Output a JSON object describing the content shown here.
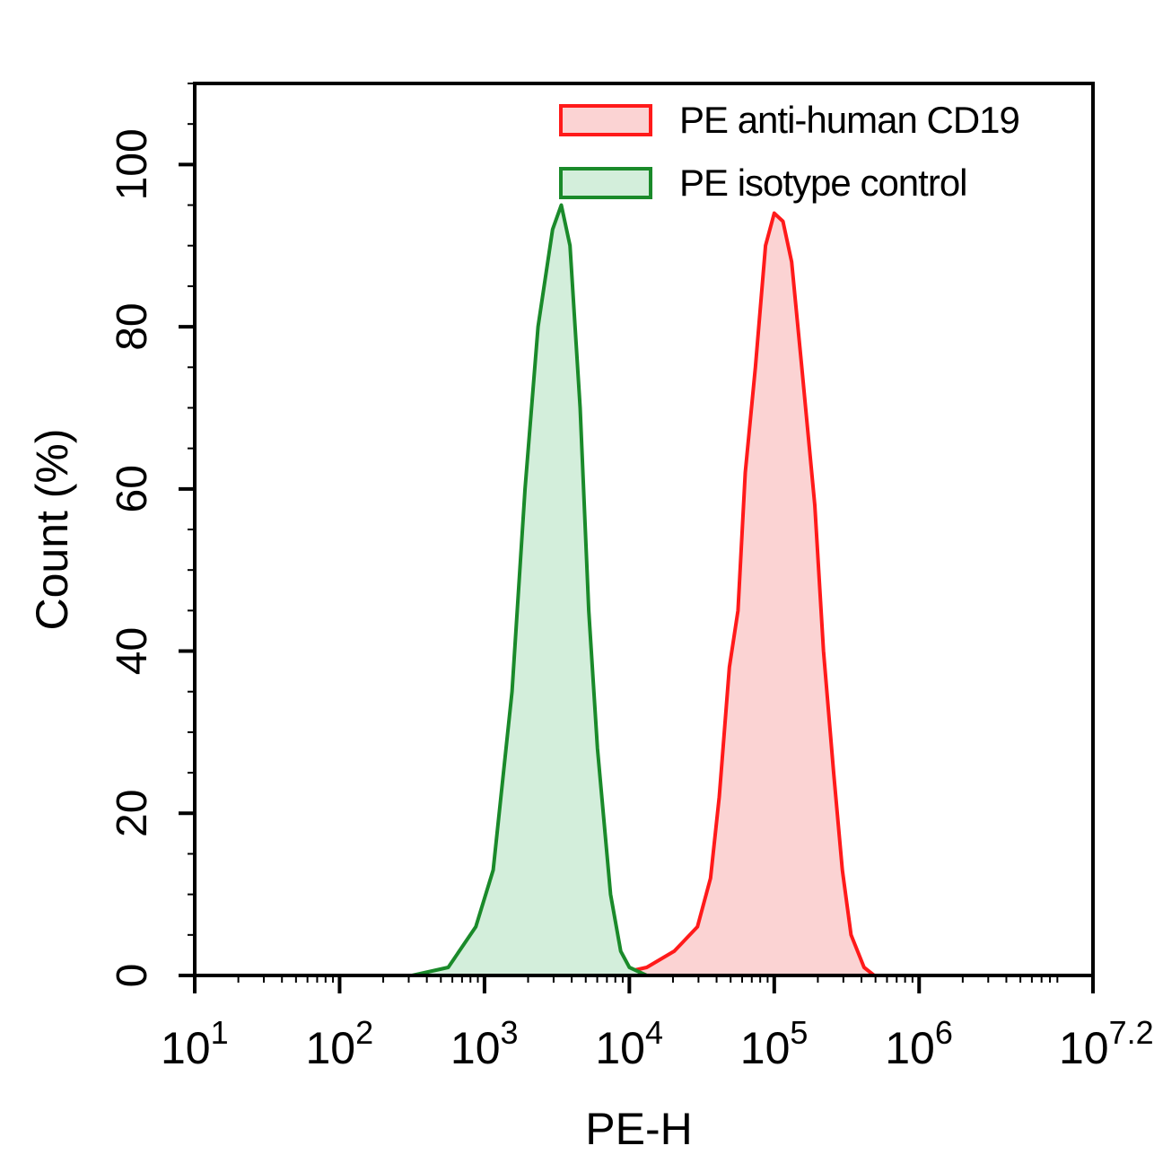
{
  "chart_data": {
    "type": "area",
    "title": "",
    "xlabel": "PE-H",
    "ylabel": "Count (%)",
    "xscale": "log10",
    "xlim_log10": [
      1,
      7.2
    ],
    "ylim": [
      0,
      110
    ],
    "x_ticks": [
      {
        "base": "10",
        "exp": "1",
        "value": 1
      },
      {
        "base": "10",
        "exp": "2",
        "value": 2
      },
      {
        "base": "10",
        "exp": "3",
        "value": 3
      },
      {
        "base": "10",
        "exp": "4",
        "value": 4
      },
      {
        "base": "10",
        "exp": "5",
        "value": 5
      },
      {
        "base": "10",
        "exp": "6",
        "value": 6
      },
      {
        "base": "10",
        "exp": "7.2",
        "value": 7.2
      }
    ],
    "y_ticks": [
      "0",
      "20",
      "40",
      "60",
      "80",
      "100"
    ],
    "grid": false,
    "legend_position": "top-right",
    "series": [
      {
        "name": "PE anti-human CD19",
        "color": "#ff1a1a",
        "fill": "#fbd3d3",
        "log10_x": [
          3.87,
          4.12,
          4.31,
          4.47,
          4.56,
          4.62,
          4.69,
          4.75,
          4.8,
          4.87,
          4.94,
          5.0,
          5.06,
          5.12,
          5.19,
          5.28,
          5.34,
          5.41,
          5.47,
          5.53,
          5.62,
          5.69
        ],
        "y": [
          0,
          1,
          3,
          6,
          12,
          22,
          38,
          45,
          62,
          75,
          90,
          94,
          93,
          88,
          75,
          58,
          40,
          25,
          13,
          5,
          1,
          0
        ]
      },
      {
        "name": "PE isotype control",
        "color": "#1a8a2a",
        "fill": "#d3eedb",
        "log10_x": [
          2.5,
          2.75,
          2.94,
          3.06,
          3.19,
          3.28,
          3.37,
          3.47,
          3.53,
          3.59,
          3.66,
          3.72,
          3.78,
          3.87,
          3.94,
          4.0,
          4.12
        ],
        "y": [
          0,
          1,
          6,
          13,
          35,
          60,
          80,
          92,
          95,
          90,
          70,
          45,
          28,
          10,
          3,
          1,
          0
        ]
      }
    ]
  }
}
